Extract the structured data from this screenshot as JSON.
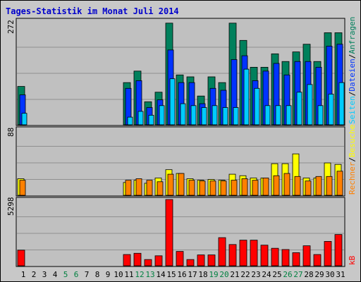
{
  "title": "Tages-Statistik im Monat Juli 2014",
  "colors": {
    "title": "#0000cc",
    "anfragen": "#00805c",
    "dateien": "#0033ff",
    "seiten": "#00ccff",
    "besuche": "#ffff00",
    "rechner": "#ff8000",
    "kb": "#ff0000",
    "weekday": "#000000",
    "weekend": "#008040",
    "plot_bg": "#c0c0c0",
    "grid": "#909090"
  },
  "chart_data": [
    {
      "type": "bar",
      "panel": "top",
      "ymax_label": "272",
      "ylim": [
        0,
        272
      ],
      "legend_labels": [
        "Anfragen",
        "/",
        "Dateien",
        "/",
        "Seiten"
      ],
      "categories": [
        "1",
        "2",
        "3",
        "4",
        "5",
        "6",
        "7",
        "8",
        "9",
        "10",
        "11",
        "12",
        "13",
        "14",
        "15",
        "16",
        "17",
        "18",
        "19",
        "20",
        "21",
        "22",
        "23",
        "24",
        "25",
        "26",
        "27",
        "28",
        "29",
        "30",
        "31"
      ],
      "series": [
        {
          "name": "Anfragen",
          "values": [
            100,
            0,
            0,
            0,
            0,
            0,
            0,
            0,
            0,
            0,
            110,
            140,
            60,
            85,
            265,
            130,
            125,
            75,
            125,
            110,
            265,
            220,
            150,
            150,
            185,
            165,
            190,
            210,
            165,
            240,
            240
          ]
        },
        {
          "name": "Dateien",
          "values": [
            78,
            0,
            0,
            0,
            0,
            0,
            0,
            0,
            0,
            0,
            95,
            115,
            45,
            65,
            195,
            110,
            110,
            55,
            95,
            90,
            170,
            180,
            115,
            140,
            160,
            130,
            165,
            165,
            150,
            205,
            210
          ]
        },
        {
          "name": "Seiten",
          "values": [
            30,
            0,
            0,
            0,
            0,
            0,
            0,
            0,
            0,
            0,
            20,
            35,
            25,
            50,
            120,
            55,
            50,
            45,
            50,
            45,
            45,
            145,
            95,
            50,
            50,
            50,
            85,
            105,
            50,
            80,
            110
          ]
        }
      ]
    },
    {
      "type": "bar",
      "panel": "middle",
      "ymax_label": "88",
      "ylim": [
        0,
        88
      ],
      "legend_labels": [
        "Rechner",
        "/",
        "Besuche"
      ],
      "categories": [
        "1",
        "2",
        "3",
        "4",
        "5",
        "6",
        "7",
        "8",
        "9",
        "10",
        "11",
        "12",
        "13",
        "14",
        "15",
        "16",
        "17",
        "18",
        "19",
        "20",
        "21",
        "22",
        "23",
        "24",
        "25",
        "26",
        "27",
        "28",
        "29",
        "30",
        "31"
      ],
      "series": [
        {
          "name": "Besuche",
          "values": [
            22,
            0,
            0,
            0,
            0,
            0,
            0,
            0,
            0,
            0,
            17,
            20,
            16,
            23,
            34,
            29,
            22,
            20,
            21,
            20,
            28,
            26,
            23,
            23,
            42,
            42,
            55,
            23,
            23,
            43,
            41
          ]
        },
        {
          "name": "Rechner",
          "values": [
            20,
            0,
            0,
            0,
            0,
            0,
            0,
            0,
            0,
            0,
            20,
            22,
            20,
            18,
            28,
            29,
            20,
            19,
            19,
            19,
            20,
            22,
            20,
            23,
            26,
            29,
            25,
            19,
            25,
            25,
            32
          ]
        }
      ]
    },
    {
      "type": "bar",
      "panel": "bottom",
      "ymax_label": "5298",
      "ylim": [
        0,
        5298
      ],
      "legend_labels": [
        "kB"
      ],
      "categories": [
        "1",
        "2",
        "3",
        "4",
        "5",
        "6",
        "7",
        "8",
        "9",
        "10",
        "11",
        "12",
        "13",
        "14",
        "15",
        "16",
        "17",
        "18",
        "19",
        "20",
        "21",
        "22",
        "23",
        "24",
        "25",
        "26",
        "27",
        "28",
        "29",
        "30",
        "31"
      ],
      "series": [
        {
          "name": "kB",
          "values": [
            1250,
            0,
            0,
            0,
            0,
            0,
            0,
            0,
            0,
            0,
            900,
            1000,
            500,
            800,
            5298,
            1150,
            500,
            870,
            870,
            2250,
            1700,
            2050,
            2050,
            1650,
            1400,
            1300,
            1050,
            1600,
            900,
            1950,
            2500
          ]
        }
      ]
    }
  ],
  "x_labels": {
    "days": [
      "1",
      "2",
      "3",
      "4",
      "5",
      "6",
      "7",
      "8",
      "9",
      "10",
      "11",
      "12",
      "13",
      "14",
      "15",
      "16",
      "17",
      "18",
      "19",
      "20",
      "21",
      "22",
      "23",
      "24",
      "25",
      "26",
      "27",
      "28",
      "29",
      "30",
      "31"
    ],
    "weekend_days": [
      "5",
      "6",
      "12",
      "13",
      "19",
      "20",
      "26",
      "27"
    ]
  }
}
